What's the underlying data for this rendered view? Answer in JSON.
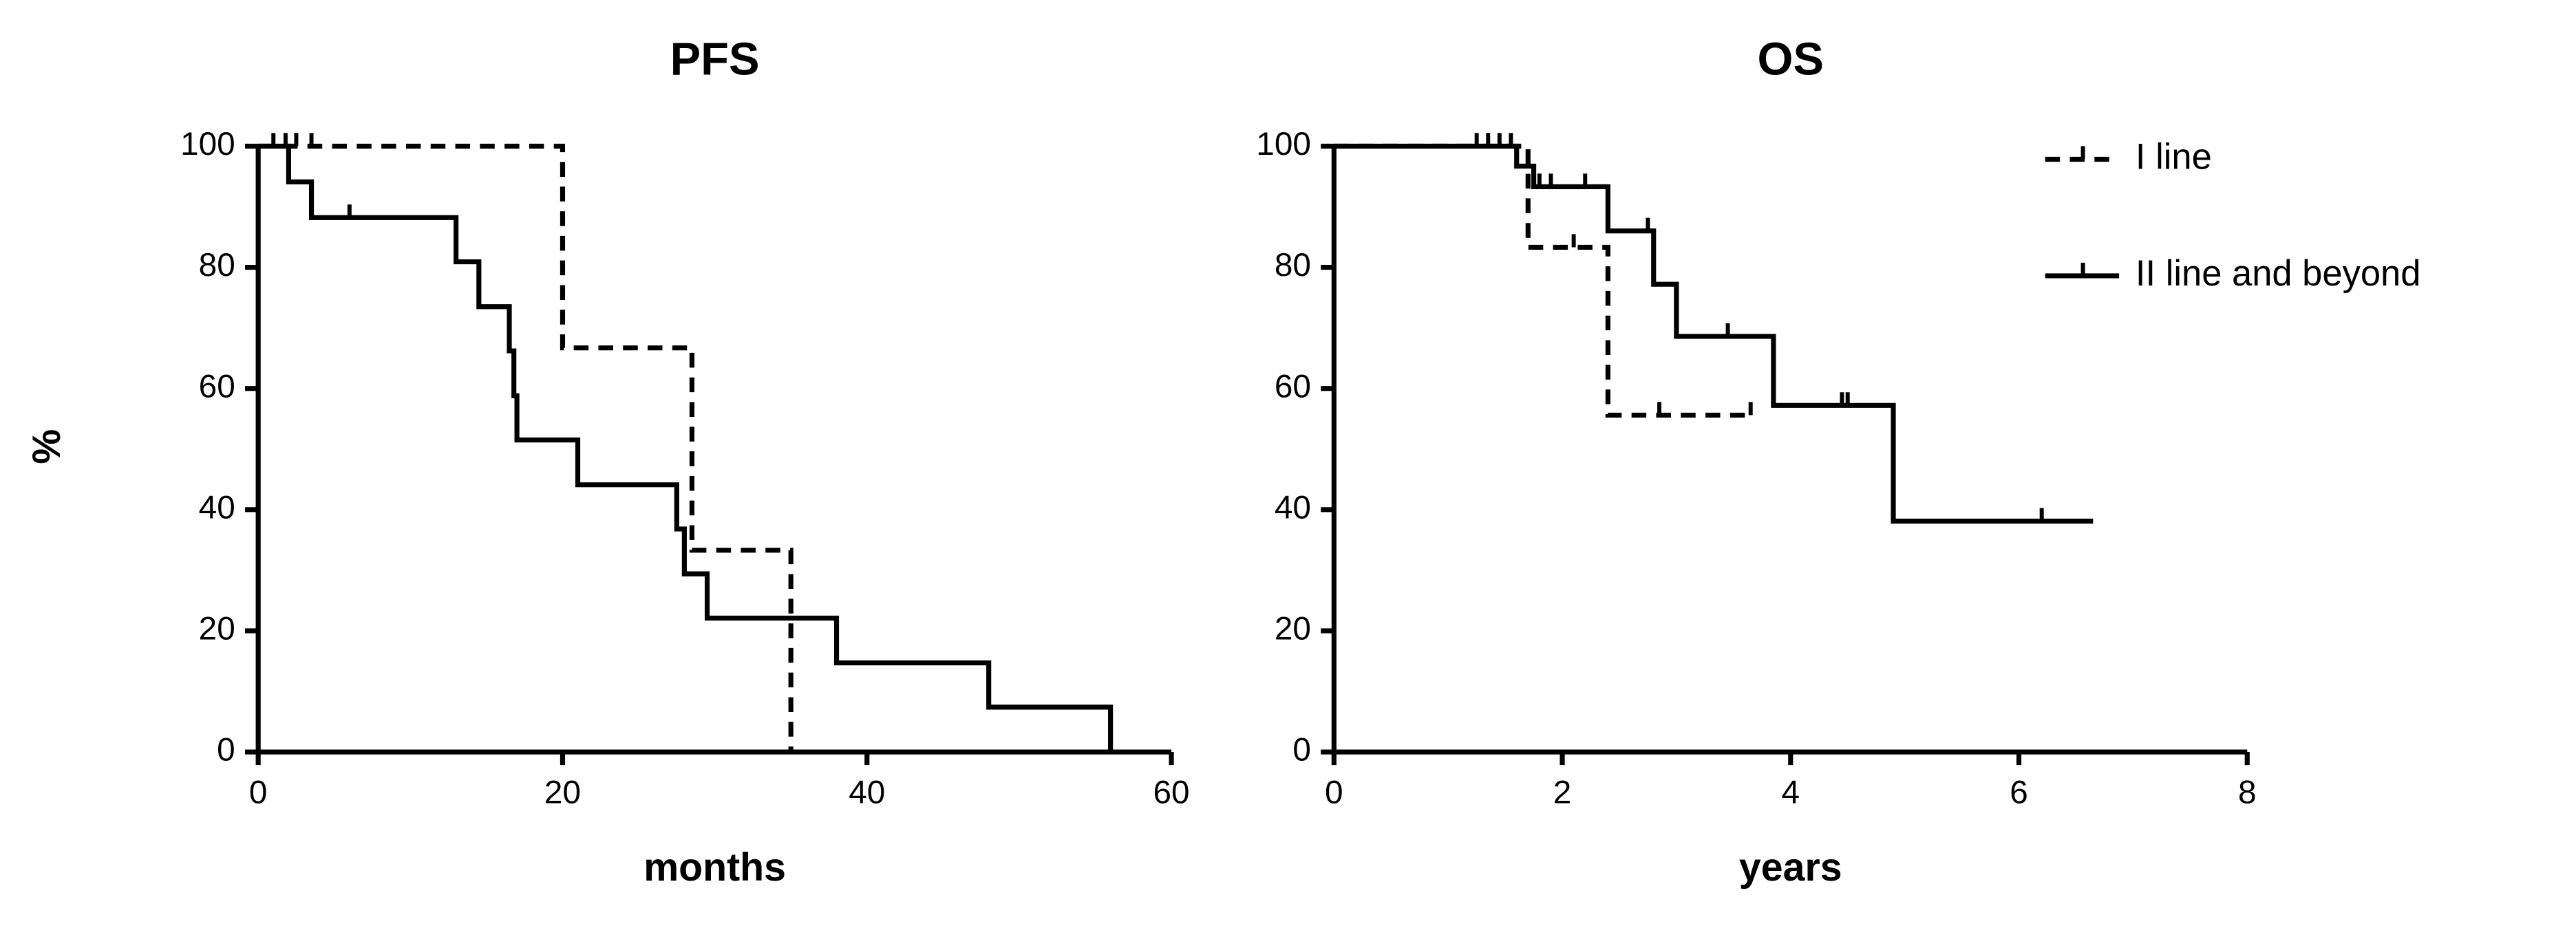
{
  "chart_data": [
    {
      "type": "step",
      "title": "PFS",
      "xlabel": "months",
      "ylabel": "%",
      "xlim": [
        0,
        60
      ],
      "xticks": [
        0,
        20,
        40,
        60
      ],
      "ylim": [
        0,
        100
      ],
      "yticks": [
        0,
        20,
        40,
        60,
        80,
        100
      ],
      "series": [
        {
          "name": "I line",
          "color": "#000000",
          "linestyle": "dashed",
          "x": [
            0,
            20,
            28.5,
            35
          ],
          "values": [
            100,
            66.7,
            33.3,
            0
          ],
          "censor_x": [
            1,
            2.5,
            3.5
          ],
          "censor_values": [
            100,
            100,
            100
          ]
        },
        {
          "name": "II line and beyond",
          "color": "#000000",
          "linestyle": "solid",
          "x": [
            0,
            2,
            3.5,
            13,
            14.5,
            16.5,
            16.8,
            17,
            21,
            27.5,
            28,
            29.5,
            38,
            48,
            56
          ],
          "values": [
            100,
            94.1,
            88.2,
            80.9,
            73.5,
            66.2,
            58.8,
            51.5,
            44.1,
            36.8,
            29.4,
            22.1,
            14.7,
            7.4,
            0
          ],
          "censor_x": [
            1.8,
            6
          ],
          "censor_values": [
            100,
            88.2
          ]
        }
      ]
    },
    {
      "type": "step",
      "title": "OS",
      "xlabel": "years",
      "legend": "right",
      "xlim": [
        0,
        8
      ],
      "xticks": [
        0,
        2,
        4,
        6,
        8
      ],
      "ylim": [
        0,
        100
      ],
      "yticks": [
        0,
        20,
        40,
        60,
        80,
        100
      ],
      "series": [
        {
          "name": "I line",
          "color": "#000000",
          "linestyle": "dashed",
          "x": [
            0,
            1.7,
            2.4,
            3.65
          ],
          "values": [
            100,
            83.3,
            55.6,
            55.6
          ],
          "censor_x": [
            1.35,
            2.1,
            2.85,
            3.65
          ],
          "censor_values": [
            100,
            83.3,
            55.6,
            55.6
          ]
        },
        {
          "name": "II line and beyond",
          "color": "#000000",
          "linestyle": "solid",
          "x": [
            0,
            1.6,
            1.75,
            2.4,
            2.8,
            3.0,
            3.85,
            4.9,
            6.65
          ],
          "values": [
            100,
            96.7,
            93.3,
            86,
            77.2,
            68.6,
            57.2,
            38.1,
            38.1
          ],
          "censor_x": [
            1.25,
            1.45,
            1.55,
            1.8,
            1.9,
            2.2,
            2.75,
            3.45,
            4.45,
            4.5,
            6.2
          ],
          "censor_values": [
            100,
            100,
            100,
            93.3,
            93.3,
            93.3,
            86,
            68.6,
            57.2,
            57.2,
            38.1
          ]
        }
      ]
    }
  ]
}
